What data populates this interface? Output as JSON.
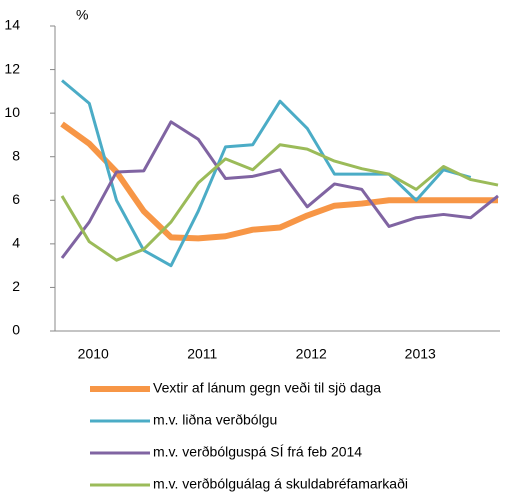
{
  "chart_data": {
    "type": "line",
    "y_label": "%",
    "categories": [
      null,
      "2010",
      null,
      null,
      null,
      "2011",
      null,
      null,
      null,
      "2012",
      null,
      null,
      null,
      "2013",
      null,
      null,
      null
    ],
    "series": [
      {
        "name": "Vextir af lánum gegn veði til sjö daga",
        "color": "#f79646",
        "values": [
          9.5,
          8.6,
          7.3,
          5.5,
          4.3,
          4.25,
          4.35,
          4.65,
          4.75,
          5.3,
          5.75,
          5.85,
          6.0,
          6.0,
          6.0,
          6.0,
          6.0
        ]
      },
      {
        "name": "m.v. liðna verðbólgu",
        "color": "#4bacc6",
        "values": [
          11.5,
          10.45,
          6.0,
          3.7,
          3.0,
          5.5,
          8.45,
          8.55,
          10.55,
          9.3,
          7.2,
          7.2,
          7.2,
          6.0,
          7.4,
          7.05,
          null
        ]
      },
      {
        "name": "m.v. verðbólguspá SÍ frá feb 2014",
        "color": "#8064a2",
        "values": [
          3.35,
          5.0,
          7.3,
          7.35,
          9.6,
          8.8,
          7.0,
          7.1,
          7.4,
          5.7,
          6.75,
          6.5,
          4.8,
          5.2,
          5.35,
          5.2,
          6.2
        ]
      },
      {
        "name": "m.v. verðbólguálag á skuldabréfamarkaði",
        "color": "#9bbb59",
        "values": [
          6.2,
          4.1,
          3.25,
          3.75,
          5.0,
          6.8,
          7.9,
          7.4,
          8.55,
          8.35,
          7.8,
          7.45,
          7.2,
          6.5,
          7.55,
          6.95,
          6.7
        ]
      }
    ],
    "ylim": [
      0,
      14
    ],
    "yticks": [
      0,
      2,
      4,
      6,
      8,
      10,
      12,
      14
    ]
  }
}
